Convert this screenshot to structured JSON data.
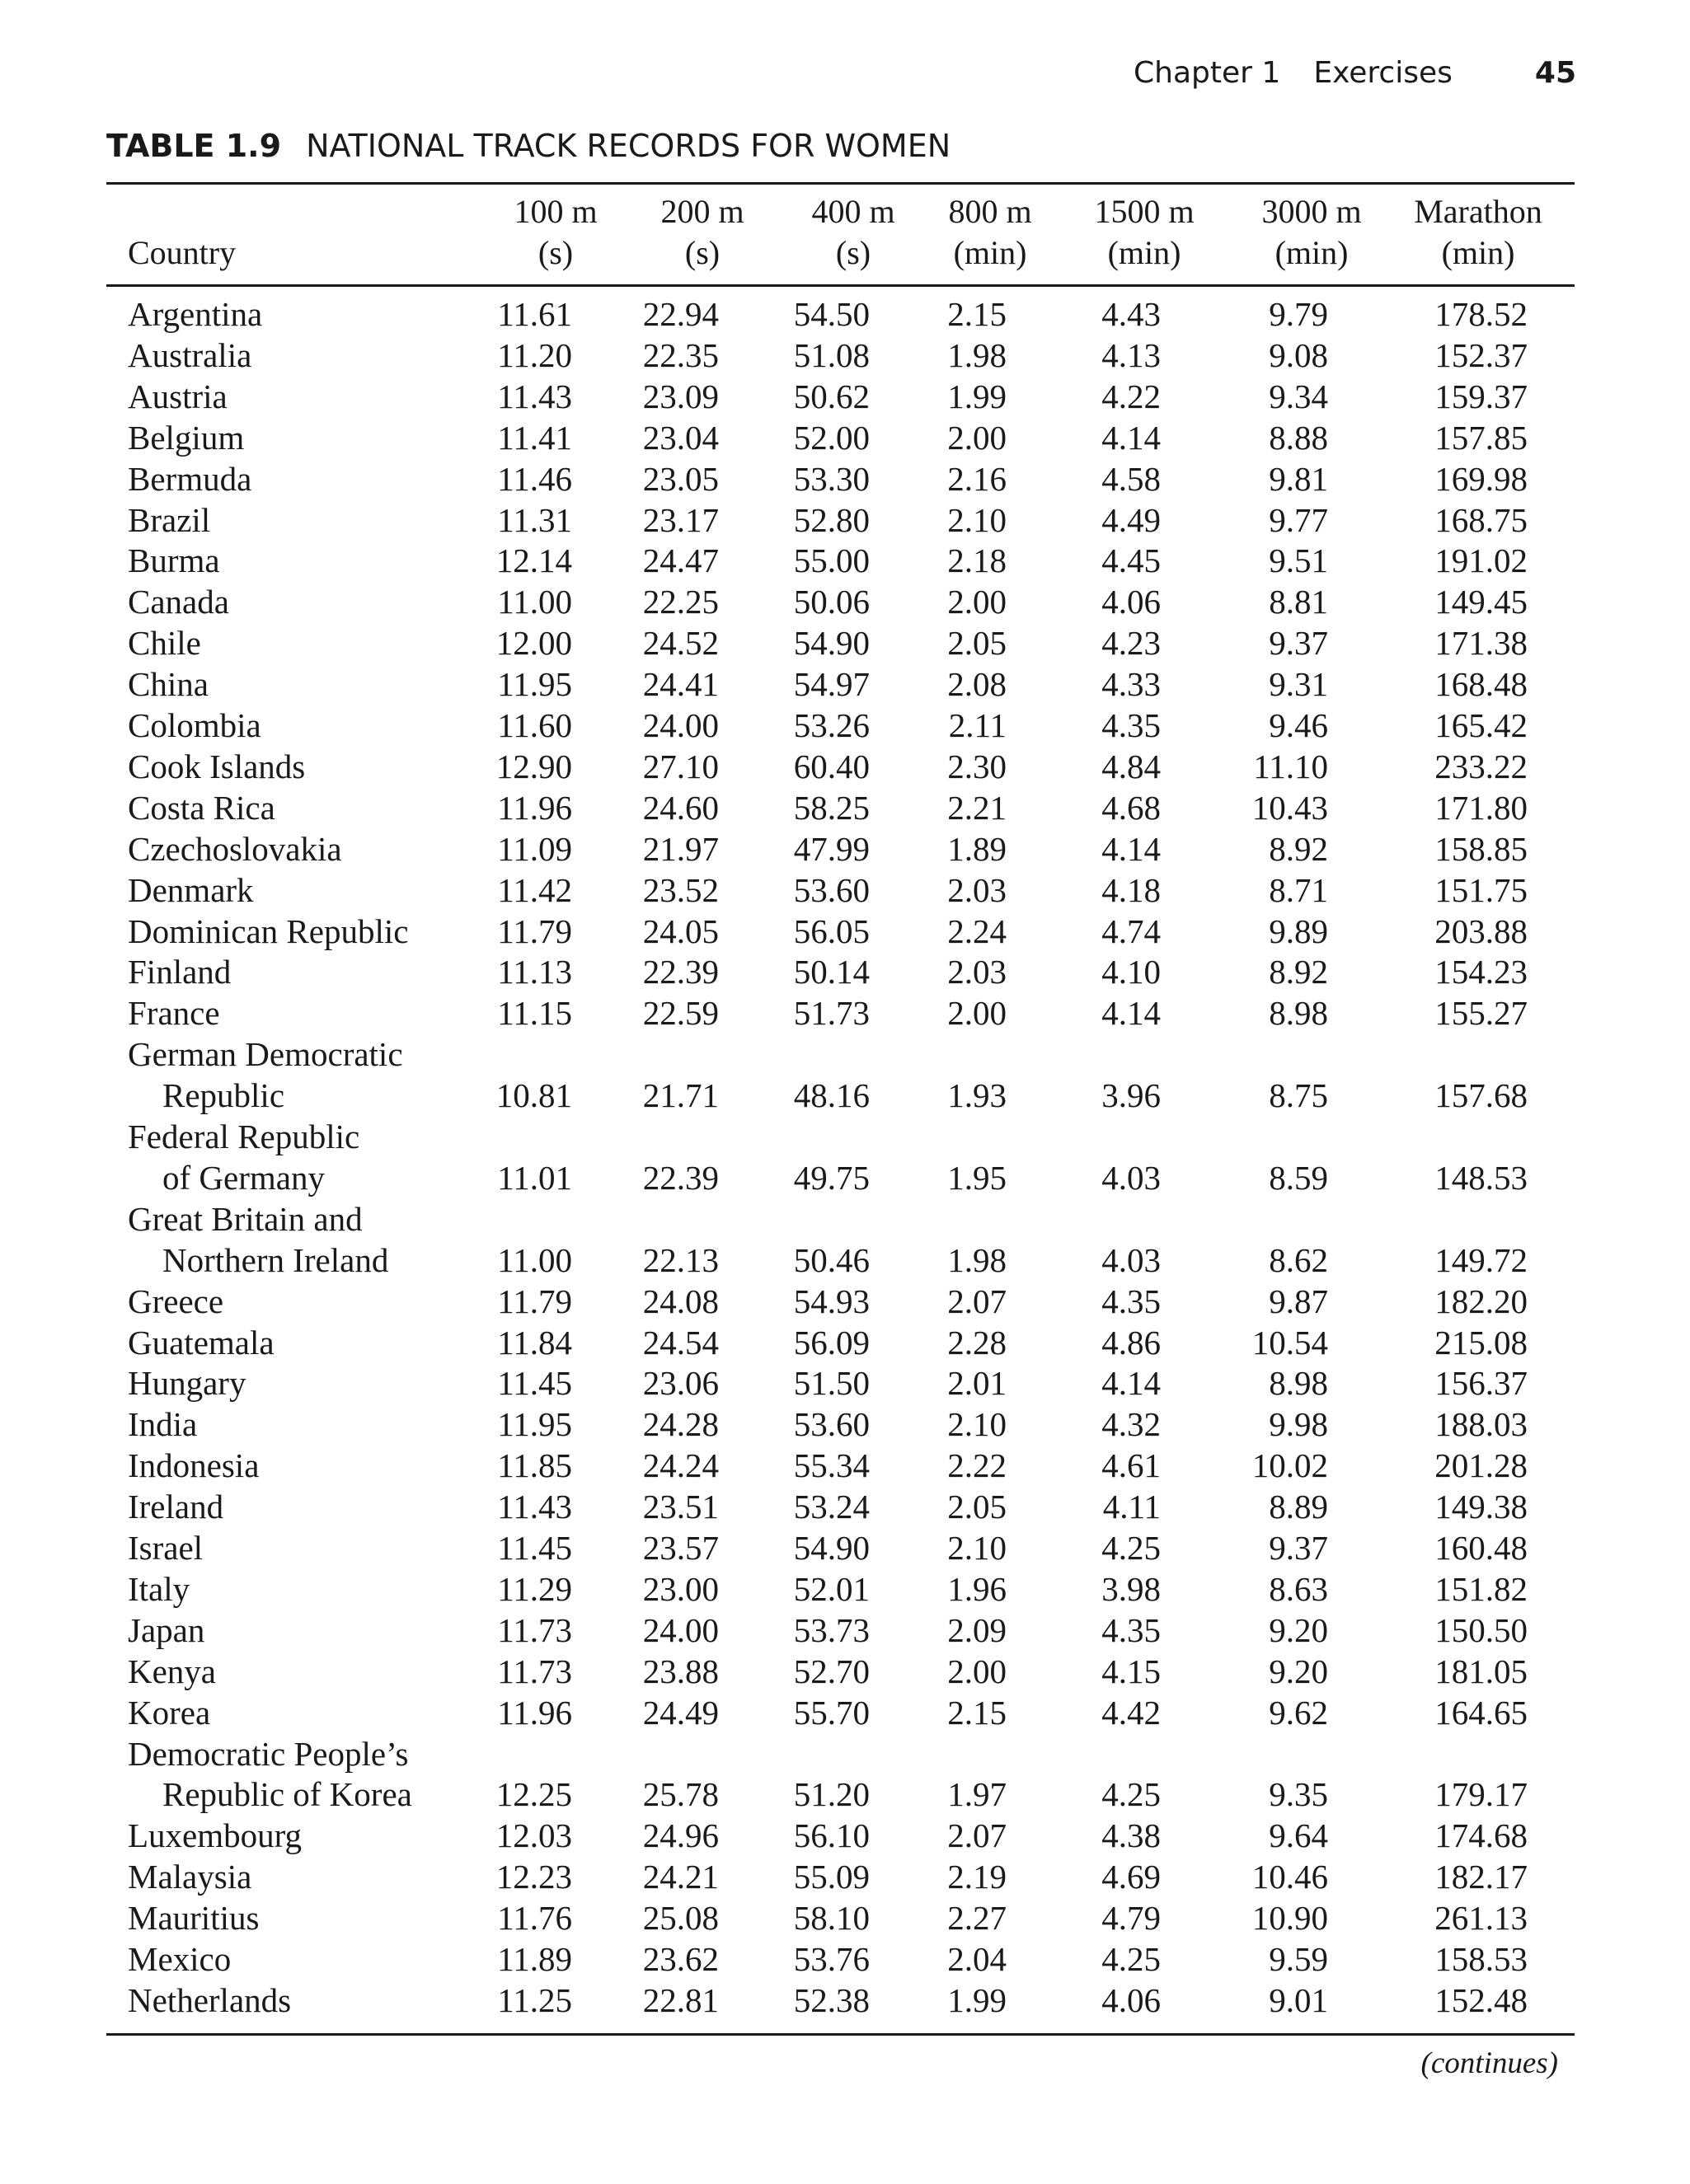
{
  "running_head": {
    "chapter": "Chapter 1",
    "section": "Exercises",
    "page": "45"
  },
  "table": {
    "label": "TABLE 1.9",
    "title": "NATIONAL TRACK RECORDS FOR WOMEN",
    "columns": [
      {
        "line1": "",
        "line2": "Country"
      },
      {
        "line1": "100 m",
        "line2": "(s)"
      },
      {
        "line1": "200 m",
        "line2": "(s)"
      },
      {
        "line1": "400 m",
        "line2": "(s)"
      },
      {
        "line1": "800 m",
        "line2": "(min)"
      },
      {
        "line1": "1500 m",
        "line2": "(min)"
      },
      {
        "line1": "3000 m",
        "line2": "(min)"
      },
      {
        "line1": "Marathon",
        "line2": "(min)"
      }
    ],
    "rows": [
      {
        "country": [
          "Argentina"
        ],
        "values": [
          "11.61",
          "22.94",
          "54.50",
          "2.15",
          "4.43",
          "9.79",
          "178.52"
        ]
      },
      {
        "country": [
          "Australia"
        ],
        "values": [
          "11.20",
          "22.35",
          "51.08",
          "1.98",
          "4.13",
          "9.08",
          "152.37"
        ]
      },
      {
        "country": [
          "Austria"
        ],
        "values": [
          "11.43",
          "23.09",
          "50.62",
          "1.99",
          "4.22",
          "9.34",
          "159.37"
        ]
      },
      {
        "country": [
          "Belgium"
        ],
        "values": [
          "11.41",
          "23.04",
          "52.00",
          "2.00",
          "4.14",
          "8.88",
          "157.85"
        ]
      },
      {
        "country": [
          "Bermuda"
        ],
        "values": [
          "11.46",
          "23.05",
          "53.30",
          "2.16",
          "4.58",
          "9.81",
          "169.98"
        ]
      },
      {
        "country": [
          "Brazil"
        ],
        "values": [
          "11.31",
          "23.17",
          "52.80",
          "2.10",
          "4.49",
          "9.77",
          "168.75"
        ]
      },
      {
        "country": [
          "Burma"
        ],
        "values": [
          "12.14",
          "24.47",
          "55.00",
          "2.18",
          "4.45",
          "9.51",
          "191.02"
        ]
      },
      {
        "country": [
          "Canada"
        ],
        "values": [
          "11.00",
          "22.25",
          "50.06",
          "2.00",
          "4.06",
          "8.81",
          "149.45"
        ]
      },
      {
        "country": [
          "Chile"
        ],
        "values": [
          "12.00",
          "24.52",
          "54.90",
          "2.05",
          "4.23",
          "9.37",
          "171.38"
        ]
      },
      {
        "country": [
          "China"
        ],
        "values": [
          "11.95",
          "24.41",
          "54.97",
          "2.08",
          "4.33",
          "9.31",
          "168.48"
        ]
      },
      {
        "country": [
          "Colombia"
        ],
        "values": [
          "11.60",
          "24.00",
          "53.26",
          "2.11",
          "4.35",
          "9.46",
          "165.42"
        ]
      },
      {
        "country": [
          "Cook Islands"
        ],
        "values": [
          "12.90",
          "27.10",
          "60.40",
          "2.30",
          "4.84",
          "11.10",
          "233.22"
        ]
      },
      {
        "country": [
          "Costa Rica"
        ],
        "values": [
          "11.96",
          "24.60",
          "58.25",
          "2.21",
          "4.68",
          "10.43",
          "171.80"
        ]
      },
      {
        "country": [
          "Czechoslovakia"
        ],
        "values": [
          "11.09",
          "21.97",
          "47.99",
          "1.89",
          "4.14",
          "8.92",
          "158.85"
        ]
      },
      {
        "country": [
          "Denmark"
        ],
        "values": [
          "11.42",
          "23.52",
          "53.60",
          "2.03",
          "4.18",
          "8.71",
          "151.75"
        ]
      },
      {
        "country": [
          "Dominican Republic"
        ],
        "values": [
          "11.79",
          "24.05",
          "56.05",
          "2.24",
          "4.74",
          "9.89",
          "203.88"
        ]
      },
      {
        "country": [
          "Finland"
        ],
        "values": [
          "11.13",
          "22.39",
          "50.14",
          "2.03",
          "4.10",
          "8.92",
          "154.23"
        ]
      },
      {
        "country": [
          "France"
        ],
        "values": [
          "11.15",
          "22.59",
          "51.73",
          "2.00",
          "4.14",
          "8.98",
          "155.27"
        ]
      },
      {
        "country": [
          "German Democratic",
          "Republic"
        ],
        "values": [
          "10.81",
          "21.71",
          "48.16",
          "1.93",
          "3.96",
          "8.75",
          "157.68"
        ]
      },
      {
        "country": [
          "Federal Republic",
          "of Germany"
        ],
        "values": [
          "11.01",
          "22.39",
          "49.75",
          "1.95",
          "4.03",
          "8.59",
          "148.53"
        ]
      },
      {
        "country": [
          "Great Britain and",
          "Northern Ireland"
        ],
        "values": [
          "11.00",
          "22.13",
          "50.46",
          "1.98",
          "4.03",
          "8.62",
          "149.72"
        ]
      },
      {
        "country": [
          "Greece"
        ],
        "values": [
          "11.79",
          "24.08",
          "54.93",
          "2.07",
          "4.35",
          "9.87",
          "182.20"
        ]
      },
      {
        "country": [
          "Guatemala"
        ],
        "values": [
          "11.84",
          "24.54",
          "56.09",
          "2.28",
          "4.86",
          "10.54",
          "215.08"
        ]
      },
      {
        "country": [
          "Hungary"
        ],
        "values": [
          "11.45",
          "23.06",
          "51.50",
          "2.01",
          "4.14",
          "8.98",
          "156.37"
        ]
      },
      {
        "country": [
          "India"
        ],
        "values": [
          "11.95",
          "24.28",
          "53.60",
          "2.10",
          "4.32",
          "9.98",
          "188.03"
        ]
      },
      {
        "country": [
          "Indonesia"
        ],
        "values": [
          "11.85",
          "24.24",
          "55.34",
          "2.22",
          "4.61",
          "10.02",
          "201.28"
        ]
      },
      {
        "country": [
          "Ireland"
        ],
        "values": [
          "11.43",
          "23.51",
          "53.24",
          "2.05",
          "4.11",
          "8.89",
          "149.38"
        ]
      },
      {
        "country": [
          "Israel"
        ],
        "values": [
          "11.45",
          "23.57",
          "54.90",
          "2.10",
          "4.25",
          "9.37",
          "160.48"
        ]
      },
      {
        "country": [
          "Italy"
        ],
        "values": [
          "11.29",
          "23.00",
          "52.01",
          "1.96",
          "3.98",
          "8.63",
          "151.82"
        ]
      },
      {
        "country": [
          "Japan"
        ],
        "values": [
          "11.73",
          "24.00",
          "53.73",
          "2.09",
          "4.35",
          "9.20",
          "150.50"
        ]
      },
      {
        "country": [
          "Kenya"
        ],
        "values": [
          "11.73",
          "23.88",
          "52.70",
          "2.00",
          "4.15",
          "9.20",
          "181.05"
        ]
      },
      {
        "country": [
          "Korea"
        ],
        "values": [
          "11.96",
          "24.49",
          "55.70",
          "2.15",
          "4.42",
          "9.62",
          "164.65"
        ]
      },
      {
        "country": [
          "Democratic People’s",
          "Republic of Korea"
        ],
        "values": [
          "12.25",
          "25.78",
          "51.20",
          "1.97",
          "4.25",
          "9.35",
          "179.17"
        ]
      },
      {
        "country": [
          "Luxembourg"
        ],
        "values": [
          "12.03",
          "24.96",
          "56.10",
          "2.07",
          "4.38",
          "9.64",
          "174.68"
        ]
      },
      {
        "country": [
          "Malaysia"
        ],
        "values": [
          "12.23",
          "24.21",
          "55.09",
          "2.19",
          "4.69",
          "10.46",
          "182.17"
        ]
      },
      {
        "country": [
          "Mauritius"
        ],
        "values": [
          "11.76",
          "25.08",
          "58.10",
          "2.27",
          "4.79",
          "10.90",
          "261.13"
        ]
      },
      {
        "country": [
          "Mexico"
        ],
        "values": [
          "11.89",
          "23.62",
          "53.76",
          "2.04",
          "4.25",
          "9.59",
          "158.53"
        ]
      },
      {
        "country": [
          "Netherlands"
        ],
        "values": [
          "11.25",
          "22.81",
          "52.38",
          "1.99",
          "4.06",
          "9.01",
          "152.48"
        ]
      }
    ],
    "footer": "(continues)"
  }
}
